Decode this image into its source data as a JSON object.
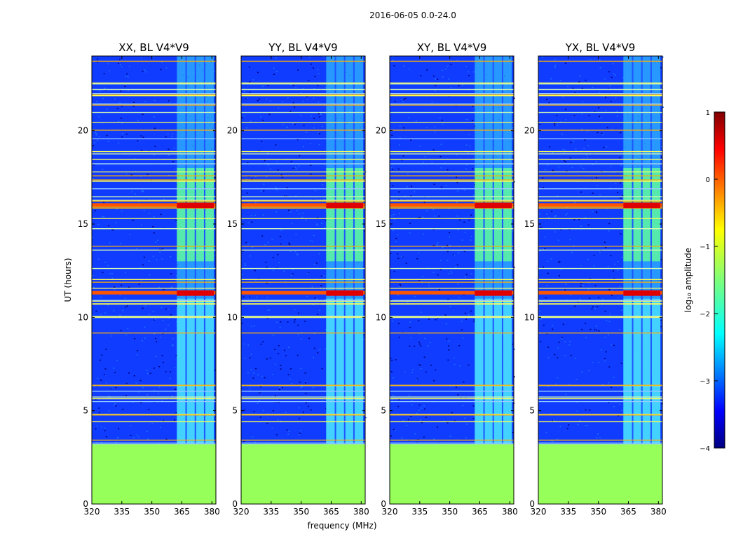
{
  "figure": {
    "suptitle": "2016-06-05 0.0-24.0",
    "xlabel": "frequency (MHz)",
    "ylabel": "UT (hours)"
  },
  "chart_data": {
    "type": "heatmap",
    "x_range": [
      320,
      382
    ],
    "y_range": [
      0,
      24
    ],
    "x_ticks": [
      320,
      335,
      350,
      365,
      380
    ],
    "y_ticks": [
      0,
      5,
      10,
      15,
      20
    ],
    "colorscale": "jet",
    "colorbar": {
      "label": "log₁₀ amplitude",
      "ticks": [
        1,
        0,
        -1,
        -2,
        -3,
        -4
      ],
      "range": [
        -4,
        1
      ]
    },
    "no_data_until_hours": 3.2,
    "no_data_fill": "#96ff5a",
    "interference_band_mhz": [
      362.5,
      381
    ],
    "panels": [
      {
        "title": "XX, BL V4*V9",
        "pol": "XX"
      },
      {
        "title": "YY, BL V4*V9",
        "pol": "YY"
      },
      {
        "title": "XY, BL V4*V9",
        "pol": "XY"
      },
      {
        "title": "YX, BL V4*V9",
        "pol": "YX"
      }
    ],
    "red_band_hours": [
      11.3,
      16.0
    ]
  }
}
